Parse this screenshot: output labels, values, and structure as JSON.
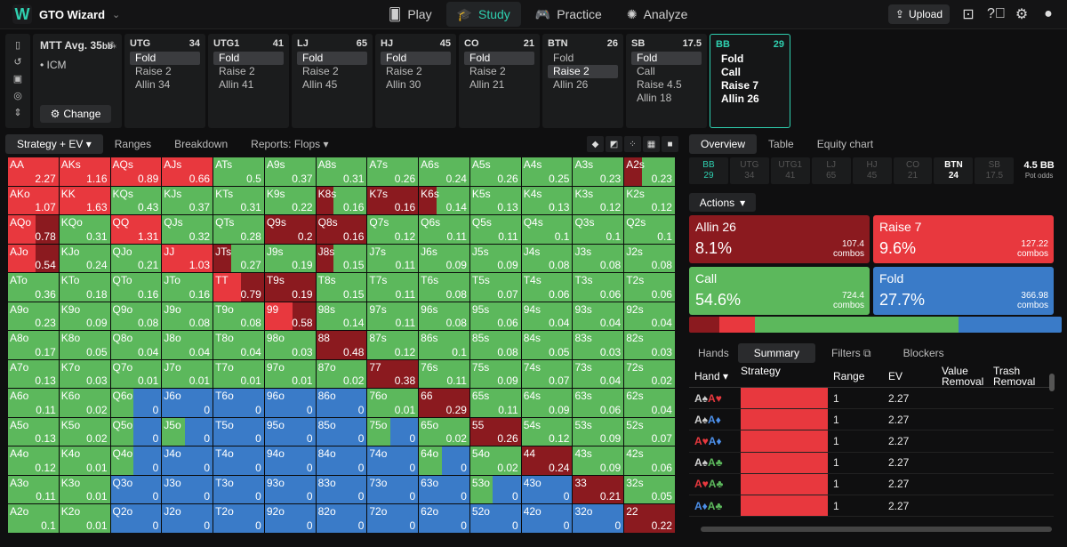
{
  "app": {
    "title": "GTO Wizard"
  },
  "nav": [
    {
      "label": "Play",
      "icon": "play-cards-icon"
    },
    {
      "label": "Study",
      "icon": "study-cap-icon"
    },
    {
      "label": "Practice",
      "icon": "gamepad-icon"
    },
    {
      "label": "Analyze",
      "icon": "analyze-bulb-icon"
    }
  ],
  "topright": {
    "upload_label": "Upload"
  },
  "header": {
    "format": "MTT",
    "avg_label": "Avg.",
    "avg_value": "35",
    "avg_unit": "bb",
    "icm": "ICM",
    "change_label": "Change",
    "positions": [
      {
        "name": "UTG",
        "stack": "34",
        "actions": [
          "Fold",
          "Raise 2",
          "Allin 34"
        ],
        "selected": 0
      },
      {
        "name": "UTG1",
        "stack": "41",
        "actions": [
          "Fold",
          "Raise 2",
          "Allin 41"
        ],
        "selected": 0
      },
      {
        "name": "LJ",
        "stack": "65",
        "actions": [
          "Fold",
          "Raise 2",
          "Allin 45"
        ],
        "selected": 0
      },
      {
        "name": "HJ",
        "stack": "45",
        "actions": [
          "Fold",
          "Raise 2",
          "Allin 30"
        ],
        "selected": 0
      },
      {
        "name": "CO",
        "stack": "21",
        "actions": [
          "Fold",
          "Raise 2",
          "Allin 21"
        ],
        "selected": 0
      },
      {
        "name": "BTN",
        "stack": "26",
        "actions": [
          "Fold",
          "Raise 2",
          "Allin 26"
        ],
        "selected": 1
      },
      {
        "name": "SB",
        "stack": "17.5",
        "actions": [
          "Fold",
          "Call",
          "Raise 4.5",
          "Allin 18"
        ],
        "selected": 0
      },
      {
        "name": "BB",
        "stack": "29",
        "actions": [
          "Fold",
          "Call",
          "Raise 7",
          "Allin 26"
        ],
        "selected": -1,
        "current": true
      }
    ]
  },
  "left_tabs": [
    "Strategy + EV",
    "Ranges",
    "Breakdown",
    "Reports: Flops"
  ],
  "colors": {
    "allin": "#8b1a1f",
    "raise": "#e8383e",
    "call": "#5cb85c",
    "fold": "#3a7bc8"
  },
  "matrix": [
    [
      [
        "AA",
        "2.27",
        "r"
      ],
      [
        "AKs",
        "1.16",
        "r"
      ],
      [
        "AQs",
        "0.89",
        "r"
      ],
      [
        "AJs",
        "0.66",
        "r"
      ],
      [
        "ATs",
        "0.5",
        "c"
      ],
      [
        "A9s",
        "0.37",
        "c"
      ],
      [
        "A8s",
        "0.31",
        "c"
      ],
      [
        "A7s",
        "0.26",
        "c"
      ],
      [
        "A6s",
        "0.24",
        "c"
      ],
      [
        "A5s",
        "0.26",
        "c"
      ],
      [
        "A4s",
        "0.25",
        "c"
      ],
      [
        "A3s",
        "0.23",
        "c"
      ],
      [
        "A2s",
        "0.23",
        "ac"
      ]
    ],
    [
      [
        "AKo",
        "1.07",
        "r"
      ],
      [
        "KK",
        "1.63",
        "r"
      ],
      [
        "KQs",
        "0.43",
        "c"
      ],
      [
        "KJs",
        "0.37",
        "c"
      ],
      [
        "KTs",
        "0.31",
        "c"
      ],
      [
        "K9s",
        "0.22",
        "c"
      ],
      [
        "K8s",
        "0.16",
        "ac"
      ],
      [
        "K7s",
        "0.16",
        "a"
      ],
      [
        "K6s",
        "0.14",
        "ac"
      ],
      [
        "K5s",
        "0.13",
        "c"
      ],
      [
        "K4s",
        "0.13",
        "c"
      ],
      [
        "K3s",
        "0.12",
        "c"
      ],
      [
        "K2s",
        "0.12",
        "c"
      ]
    ],
    [
      [
        "AQo",
        "0.78",
        "ra"
      ],
      [
        "KQo",
        "0.31",
        "c"
      ],
      [
        "QQ",
        "1.31",
        "r"
      ],
      [
        "QJs",
        "0.32",
        "c"
      ],
      [
        "QTs",
        "0.28",
        "c"
      ],
      [
        "Q9s",
        "0.2",
        "a"
      ],
      [
        "Q8s",
        "0.16",
        "a"
      ],
      [
        "Q7s",
        "0.12",
        "c"
      ],
      [
        "Q6s",
        "0.11",
        "c"
      ],
      [
        "Q5s",
        "0.11",
        "c"
      ],
      [
        "Q4s",
        "0.1",
        "c"
      ],
      [
        "Q3s",
        "0.1",
        "c"
      ],
      [
        "Q2s",
        "0.1",
        "c"
      ]
    ],
    [
      [
        "AJo",
        "0.54",
        "ra"
      ],
      [
        "KJo",
        "0.24",
        "c"
      ],
      [
        "QJo",
        "0.21",
        "c"
      ],
      [
        "JJ",
        "1.03",
        "r"
      ],
      [
        "JTs",
        "0.27",
        "ac"
      ],
      [
        "J9s",
        "0.19",
        "c"
      ],
      [
        "J8s",
        "0.15",
        "ac"
      ],
      [
        "J7s",
        "0.11",
        "c"
      ],
      [
        "J6s",
        "0.09",
        "c"
      ],
      [
        "J5s",
        "0.09",
        "c"
      ],
      [
        "J4s",
        "0.08",
        "c"
      ],
      [
        "J3s",
        "0.08",
        "c"
      ],
      [
        "J2s",
        "0.08",
        "c"
      ]
    ],
    [
      [
        "ATo",
        "0.36",
        "c"
      ],
      [
        "KTo",
        "0.18",
        "c"
      ],
      [
        "QTo",
        "0.16",
        "c"
      ],
      [
        "JTo",
        "0.16",
        "c"
      ],
      [
        "TT",
        "0.79",
        "ra"
      ],
      [
        "T9s",
        "0.19",
        "a"
      ],
      [
        "T8s",
        "0.15",
        "c"
      ],
      [
        "T7s",
        "0.11",
        "c"
      ],
      [
        "T6s",
        "0.08",
        "c"
      ],
      [
        "T5s",
        "0.07",
        "c"
      ],
      [
        "T4s",
        "0.06",
        "c"
      ],
      [
        "T3s",
        "0.06",
        "c"
      ],
      [
        "T2s",
        "0.06",
        "c"
      ]
    ],
    [
      [
        "A9o",
        "0.23",
        "c"
      ],
      [
        "K9o",
        "0.09",
        "c"
      ],
      [
        "Q9o",
        "0.08",
        "c"
      ],
      [
        "J9o",
        "0.08",
        "c"
      ],
      [
        "T9o",
        "0.08",
        "c"
      ],
      [
        "99",
        "0.58",
        "ra"
      ],
      [
        "98s",
        "0.14",
        "c"
      ],
      [
        "97s",
        "0.11",
        "c"
      ],
      [
        "96s",
        "0.08",
        "c"
      ],
      [
        "95s",
        "0.06",
        "c"
      ],
      [
        "94s",
        "0.04",
        "c"
      ],
      [
        "93s",
        "0.04",
        "c"
      ],
      [
        "92s",
        "0.04",
        "c"
      ]
    ],
    [
      [
        "A8o",
        "0.17",
        "c"
      ],
      [
        "K8o",
        "0.05",
        "c"
      ],
      [
        "Q8o",
        "0.04",
        "c"
      ],
      [
        "J8o",
        "0.04",
        "c"
      ],
      [
        "T8o",
        "0.04",
        "c"
      ],
      [
        "98o",
        "0.03",
        "c"
      ],
      [
        "88",
        "0.48",
        "a"
      ],
      [
        "87s",
        "0.12",
        "c"
      ],
      [
        "86s",
        "0.1",
        "c"
      ],
      [
        "85s",
        "0.08",
        "c"
      ],
      [
        "84s",
        "0.05",
        "c"
      ],
      [
        "83s",
        "0.03",
        "c"
      ],
      [
        "82s",
        "0.03",
        "c"
      ]
    ],
    [
      [
        "A7o",
        "0.13",
        "c"
      ],
      [
        "K7o",
        "0.03",
        "c"
      ],
      [
        "Q7o",
        "0.01",
        "c"
      ],
      [
        "J7o",
        "0.01",
        "c"
      ],
      [
        "T7o",
        "0.01",
        "c"
      ],
      [
        "97o",
        "0.01",
        "c"
      ],
      [
        "87o",
        "0.02",
        "c"
      ],
      [
        "77",
        "0.38",
        "a"
      ],
      [
        "76s",
        "0.11",
        "c"
      ],
      [
        "75s",
        "0.09",
        "c"
      ],
      [
        "74s",
        "0.07",
        "c"
      ],
      [
        "73s",
        "0.04",
        "c"
      ],
      [
        "72s",
        "0.02",
        "c"
      ]
    ],
    [
      [
        "A6o",
        "0.11",
        "c"
      ],
      [
        "K6o",
        "0.02",
        "c"
      ],
      [
        "Q6o",
        "0",
        "cf"
      ],
      [
        "J6o",
        "0",
        "f"
      ],
      [
        "T6o",
        "0",
        "f"
      ],
      [
        "96o",
        "0",
        "f"
      ],
      [
        "86o",
        "0",
        "f"
      ],
      [
        "76o",
        "0.01",
        "c"
      ],
      [
        "66",
        "0.29",
        "a"
      ],
      [
        "65s",
        "0.11",
        "c"
      ],
      [
        "64s",
        "0.09",
        "c"
      ],
      [
        "63s",
        "0.06",
        "c"
      ],
      [
        "62s",
        "0.04",
        "c"
      ]
    ],
    [
      [
        "A5o",
        "0.13",
        "c"
      ],
      [
        "K5o",
        "0.02",
        "c"
      ],
      [
        "Q5o",
        "0",
        "cf"
      ],
      [
        "J5o",
        "0",
        "cf"
      ],
      [
        "T5o",
        "0",
        "f"
      ],
      [
        "95o",
        "0",
        "f"
      ],
      [
        "85o",
        "0",
        "f"
      ],
      [
        "75o",
        "0",
        "cf"
      ],
      [
        "65o",
        "0.02",
        "c"
      ],
      [
        "55",
        "0.26",
        "a"
      ],
      [
        "54s",
        "0.12",
        "c"
      ],
      [
        "53s",
        "0.09",
        "c"
      ],
      [
        "52s",
        "0.07",
        "c"
      ]
    ],
    [
      [
        "A4o",
        "0.12",
        "c"
      ],
      [
        "K4o",
        "0.01",
        "c"
      ],
      [
        "Q4o",
        "0",
        "cf"
      ],
      [
        "J4o",
        "0",
        "f"
      ],
      [
        "T4o",
        "0",
        "f"
      ],
      [
        "94o",
        "0",
        "f"
      ],
      [
        "84o",
        "0",
        "f"
      ],
      [
        "74o",
        "0",
        "f"
      ],
      [
        "64o",
        "0",
        "cf"
      ],
      [
        "54o",
        "0.02",
        "c"
      ],
      [
        "44",
        "0.24",
        "a"
      ],
      [
        "43s",
        "0.09",
        "c"
      ],
      [
        "42s",
        "0.06",
        "c"
      ]
    ],
    [
      [
        "A3o",
        "0.11",
        "c"
      ],
      [
        "K3o",
        "0.01",
        "c"
      ],
      [
        "Q3o",
        "0",
        "f"
      ],
      [
        "J3o",
        "0",
        "f"
      ],
      [
        "T3o",
        "0",
        "f"
      ],
      [
        "93o",
        "0",
        "f"
      ],
      [
        "83o",
        "0",
        "f"
      ],
      [
        "73o",
        "0",
        "f"
      ],
      [
        "63o",
        "0",
        "f"
      ],
      [
        "53o",
        "0",
        "cf"
      ],
      [
        "43o",
        "0",
        "f"
      ],
      [
        "33",
        "0.21",
        "a"
      ],
      [
        "32s",
        "0.05",
        "c"
      ]
    ],
    [
      [
        "A2o",
        "0.1",
        "c"
      ],
      [
        "K2o",
        "0.01",
        "c"
      ],
      [
        "Q2o",
        "0",
        "f"
      ],
      [
        "J2o",
        "0",
        "f"
      ],
      [
        "T2o",
        "0",
        "f"
      ],
      [
        "92o",
        "0",
        "f"
      ],
      [
        "82o",
        "0",
        "f"
      ],
      [
        "72o",
        "0",
        "f"
      ],
      [
        "62o",
        "0",
        "f"
      ],
      [
        "52o",
        "0",
        "f"
      ],
      [
        "42o",
        "0",
        "f"
      ],
      [
        "32o",
        "0",
        "f"
      ],
      [
        "22",
        "0.22",
        "a"
      ]
    ]
  ],
  "right_tabs": [
    "Overview",
    "Table",
    "Equity chart"
  ],
  "pos_cols": [
    {
      "n": "BB",
      "v": "29"
    },
    {
      "n": "UTG",
      "v": "34"
    },
    {
      "n": "UTG1",
      "v": "41"
    },
    {
      "n": "LJ",
      "v": "65"
    },
    {
      "n": "HJ",
      "v": "45"
    },
    {
      "n": "CO",
      "v": "21"
    },
    {
      "n": "BTN",
      "v": "24"
    },
    {
      "n": "SB",
      "v": "17.5"
    }
  ],
  "pot": {
    "value": "4.5 BB",
    "label": "Pot odds"
  },
  "actions_label": "Actions",
  "action_boxes": [
    {
      "name": "Allin 26",
      "pct": "8.1%",
      "combos": "107.4",
      "unit": "combos"
    },
    {
      "name": "Raise 7",
      "pct": "9.6%",
      "combos": "127.22",
      "unit": "combos"
    },
    {
      "name": "Call",
      "pct": "54.6%",
      "combos": "724.4",
      "unit": "combos"
    },
    {
      "name": "Fold",
      "pct": "27.7%",
      "combos": "366.98",
      "unit": "combos"
    }
  ],
  "freq": [
    0.081,
    0.096,
    0.546,
    0.277
  ],
  "bottom_tabs": [
    "Hands",
    "Summary",
    "Filters",
    "Blockers"
  ],
  "table": {
    "headers": [
      "Hand",
      "Strategy",
      "Range",
      "EV",
      "Value Removal",
      "Trash Removal"
    ],
    "rows": [
      {
        "c1": "A",
        "s1": "♠",
        "c2": "A",
        "s2": "♥",
        "range": "1",
        "ev": "2.27",
        "k1": "#cfcfcf",
        "k2": "#e8383e"
      },
      {
        "c1": "A",
        "s1": "♠",
        "c2": "A",
        "s2": "♦",
        "range": "1",
        "ev": "2.27",
        "k1": "#cfcfcf",
        "k2": "#4c8fe8"
      },
      {
        "c1": "A",
        "s1": "♥",
        "c2": "A",
        "s2": "♦",
        "range": "1",
        "ev": "2.27",
        "k1": "#e8383e",
        "k2": "#4c8fe8"
      },
      {
        "c1": "A",
        "s1": "♠",
        "c2": "A",
        "s2": "♣",
        "range": "1",
        "ev": "2.27",
        "k1": "#cfcfcf",
        "k2": "#5cb85c"
      },
      {
        "c1": "A",
        "s1": "♥",
        "c2": "A",
        "s2": "♣",
        "range": "1",
        "ev": "2.27",
        "k1": "#e8383e",
        "k2": "#5cb85c"
      },
      {
        "c1": "A",
        "s1": "♦",
        "c2": "A",
        "s2": "♣",
        "range": "1",
        "ev": "2.27",
        "k1": "#4c8fe8",
        "k2": "#5cb85c"
      }
    ]
  }
}
